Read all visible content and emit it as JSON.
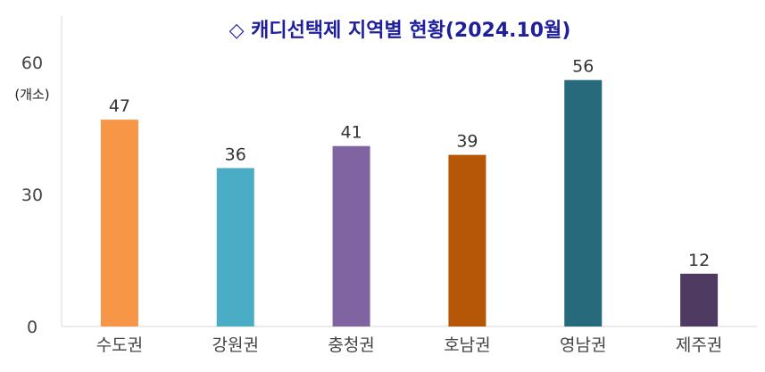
{
  "chart_data": {
    "type": "bar",
    "title": "◇ 캐디선택제 지역별 현황(2024.10월)",
    "unit_label": "(개소)",
    "categories": [
      "수도권",
      "강원권",
      "충청권",
      "호남권",
      "영남권",
      "제주권"
    ],
    "values": [
      47,
      36,
      41,
      39,
      56,
      12
    ],
    "data_labels": [
      "47",
      "36",
      "41",
      "39",
      "56",
      "12"
    ],
    "colors": [
      "#F79646",
      "#4BACC6",
      "#8064A2",
      "#B65708",
      "#276A7C",
      "#4F3B62"
    ],
    "ylim": [
      0,
      60
    ],
    "yticks": [
      "0",
      "30",
      "60"
    ],
    "ytick_values": [
      0,
      30,
      60
    ],
    "grid": false,
    "legend": "none"
  }
}
